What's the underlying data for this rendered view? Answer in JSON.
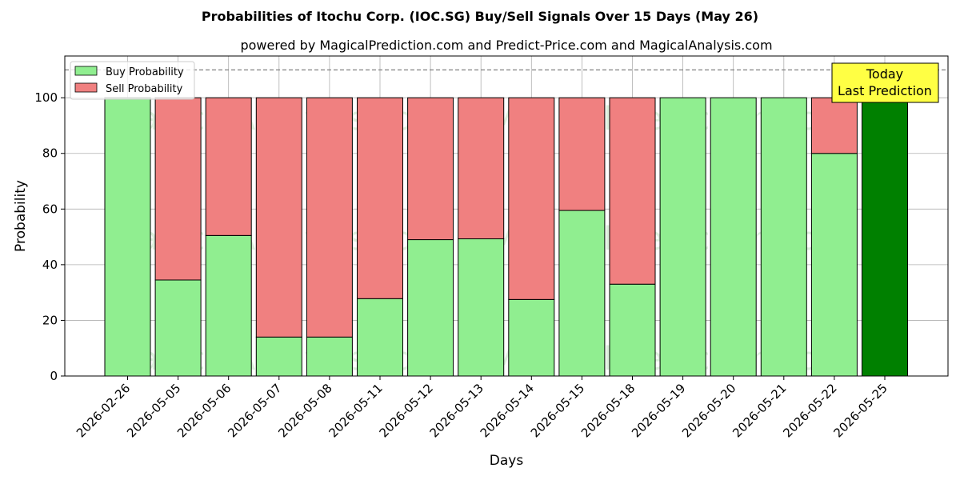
{
  "chart_data": {
    "type": "bar",
    "stacked": true,
    "title": "Probabilities of Itochu Corp. (IOC.SG) Buy/Sell Signals Over 15 Days (May 26)",
    "subtitle": "powered by MagicalPrediction.com and Predict-Price.com and MagicalAnalysis.com",
    "xlabel": "Days",
    "ylabel": "Probability",
    "ylim": [
      0,
      115
    ],
    "yticks": [
      0,
      20,
      40,
      60,
      80,
      100
    ],
    "grid": true,
    "legend_position": "top-left",
    "reference_line": 110,
    "categories": [
      "2026-02-26",
      "2026-05-05",
      "2026-05-06",
      "2026-05-07",
      "2026-05-08",
      "2026-05-11",
      "2026-05-12",
      "2026-05-13",
      "2026-05-14",
      "2026-05-15",
      "2026-05-18",
      "2026-05-19",
      "2026-05-20",
      "2026-05-21",
      "2026-05-22",
      "2026-05-25"
    ],
    "series": [
      {
        "name": "Buy Probability",
        "color": "#90ee90",
        "values": [
          100,
          34.5,
          50.5,
          14,
          14,
          27.8,
          49,
          49.3,
          27.5,
          59.5,
          33,
          100,
          100,
          100,
          80,
          100
        ]
      },
      {
        "name": "Sell Probability",
        "color": "#f08080",
        "values": [
          0,
          65.5,
          49.5,
          86,
          86,
          72.2,
          51,
          50.7,
          72.5,
          40.5,
          67,
          0,
          0,
          0,
          20,
          0
        ]
      }
    ],
    "highlight": {
      "index": 15,
      "color": "#008000"
    },
    "annotation": {
      "lines": [
        "Today",
        "Last Prediction"
      ],
      "background": "#ffff44"
    },
    "watermarks": [
      "MagicalAnalysis.com",
      "MagicalPrediction.com"
    ]
  }
}
